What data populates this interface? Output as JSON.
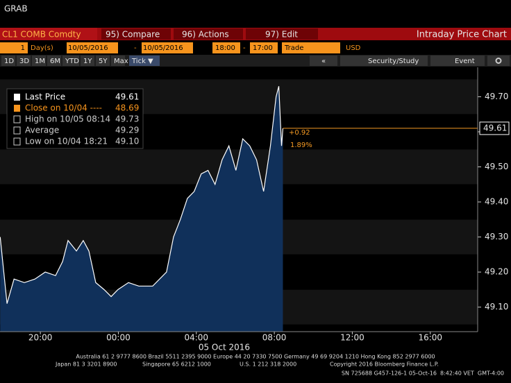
{
  "window_title": "GRAB",
  "toolbar": {
    "security": "CL1 COMB Comdty",
    "compare": "95) Compare",
    "actions": "96) Actions",
    "edit": "97) Edit",
    "panel_title": "Intraday Price Chart"
  },
  "settings": {
    "period": "1",
    "period_unit": "Day(s)",
    "start_date": "10/05/2016",
    "dash1": "-",
    "end_date": "10/05/2016",
    "start_time": "18:00",
    "dash2": "-",
    "end_time": "17:00",
    "field": "Trade",
    "currency": "USD"
  },
  "range_buttons": [
    "1D",
    "3D",
    "1M",
    "6M",
    "YTD",
    "1Y",
    "5Y",
    "Max",
    "Tick ▼"
  ],
  "tools": {
    "back": "«",
    "study": "Security/Study",
    "event": "Event"
  },
  "legend": [
    {
      "label": "Last Price",
      "value": "49.61"
    },
    {
      "label": "Close on 10/04 ----",
      "value": "48.69"
    },
    {
      "label": "High on 10/05 08:14",
      "value": "49.73"
    },
    {
      "label": "Average",
      "value": "49.29"
    },
    {
      "label": "Low on 10/04 18:21",
      "value": "49.10"
    }
  ],
  "change": {
    "abs": "+0.92",
    "pct": "1.89%"
  },
  "chart_data": {
    "type": "area",
    "color": "#ffffff",
    "fill": "#10305a",
    "last_price": 49.61,
    "last_color": "#f59a23",
    "x": [
      17.94,
      18.29,
      18.65,
      19.18,
      19.72,
      20.25,
      20.78,
      21.14,
      21.42,
      21.85,
      22.2,
      22.49,
      22.84,
      23.27,
      23.63,
      23.98,
      24.52,
      25.05,
      25.76,
      26.47,
      26.83,
      27.18,
      27.54,
      27.89,
      28.25,
      28.6,
      28.96,
      29.32,
      29.67,
      30.03,
      30.38,
      30.74,
      31.09,
      31.45,
      31.8,
      32.09,
      32.23,
      32.37,
      32.44
    ],
    "values": [
      49.3,
      49.11,
      49.18,
      49.17,
      49.18,
      49.2,
      49.19,
      49.23,
      49.29,
      49.26,
      49.29,
      49.26,
      49.17,
      49.15,
      49.13,
      49.15,
      49.17,
      49.16,
      49.16,
      49.2,
      49.3,
      49.35,
      49.41,
      49.43,
      49.48,
      49.49,
      49.45,
      49.52,
      49.56,
      49.49,
      49.58,
      49.56,
      49.52,
      49.43,
      49.56,
      49.7,
      49.73,
      49.56,
      49.61
    ],
    "xlim": [
      17.93,
      42.43
    ],
    "xticks": [
      {
        "value": 20,
        "label": "20:00"
      },
      {
        "value": 24,
        "label": "00:00"
      },
      {
        "value": 28,
        "label": "04:00"
      },
      {
        "value": 32,
        "label": "08:00"
      },
      {
        "value": 36,
        "label": "12:00"
      },
      {
        "value": 40,
        "label": "16:00"
      }
    ],
    "xlabel": "05 Oct 2016",
    "ylim": [
      49.03,
      49.784
    ],
    "yticks": [
      {
        "value": 49.1,
        "label": "49.10"
      },
      {
        "value": 49.2,
        "label": "49.20"
      },
      {
        "value": 49.3,
        "label": "49.30"
      },
      {
        "value": 49.4,
        "label": "49.40"
      },
      {
        "value": 49.5,
        "label": "49.50"
      },
      49.6,
      {
        "value": 49.7,
        "label": "49.70"
      }
    ]
  },
  "footer": [
    "Australia 61 2 9777 8600 Brazil 5511 2395 9000 Europe 44 20 7330 7500 Germany 49 69 9204 1210 Hong Kong 852 2977 6000",
    "Japan 81 3 3201 8900",
    "Singapore 65 6212 1000",
    "U.S. 1 212 318 2000",
    "Copyright 2016 Bloomberg Finance L.P.",
    "SN 725688 G457-126-1 05-Oct-16  8:42:40 VET  GMT-4:00"
  ]
}
